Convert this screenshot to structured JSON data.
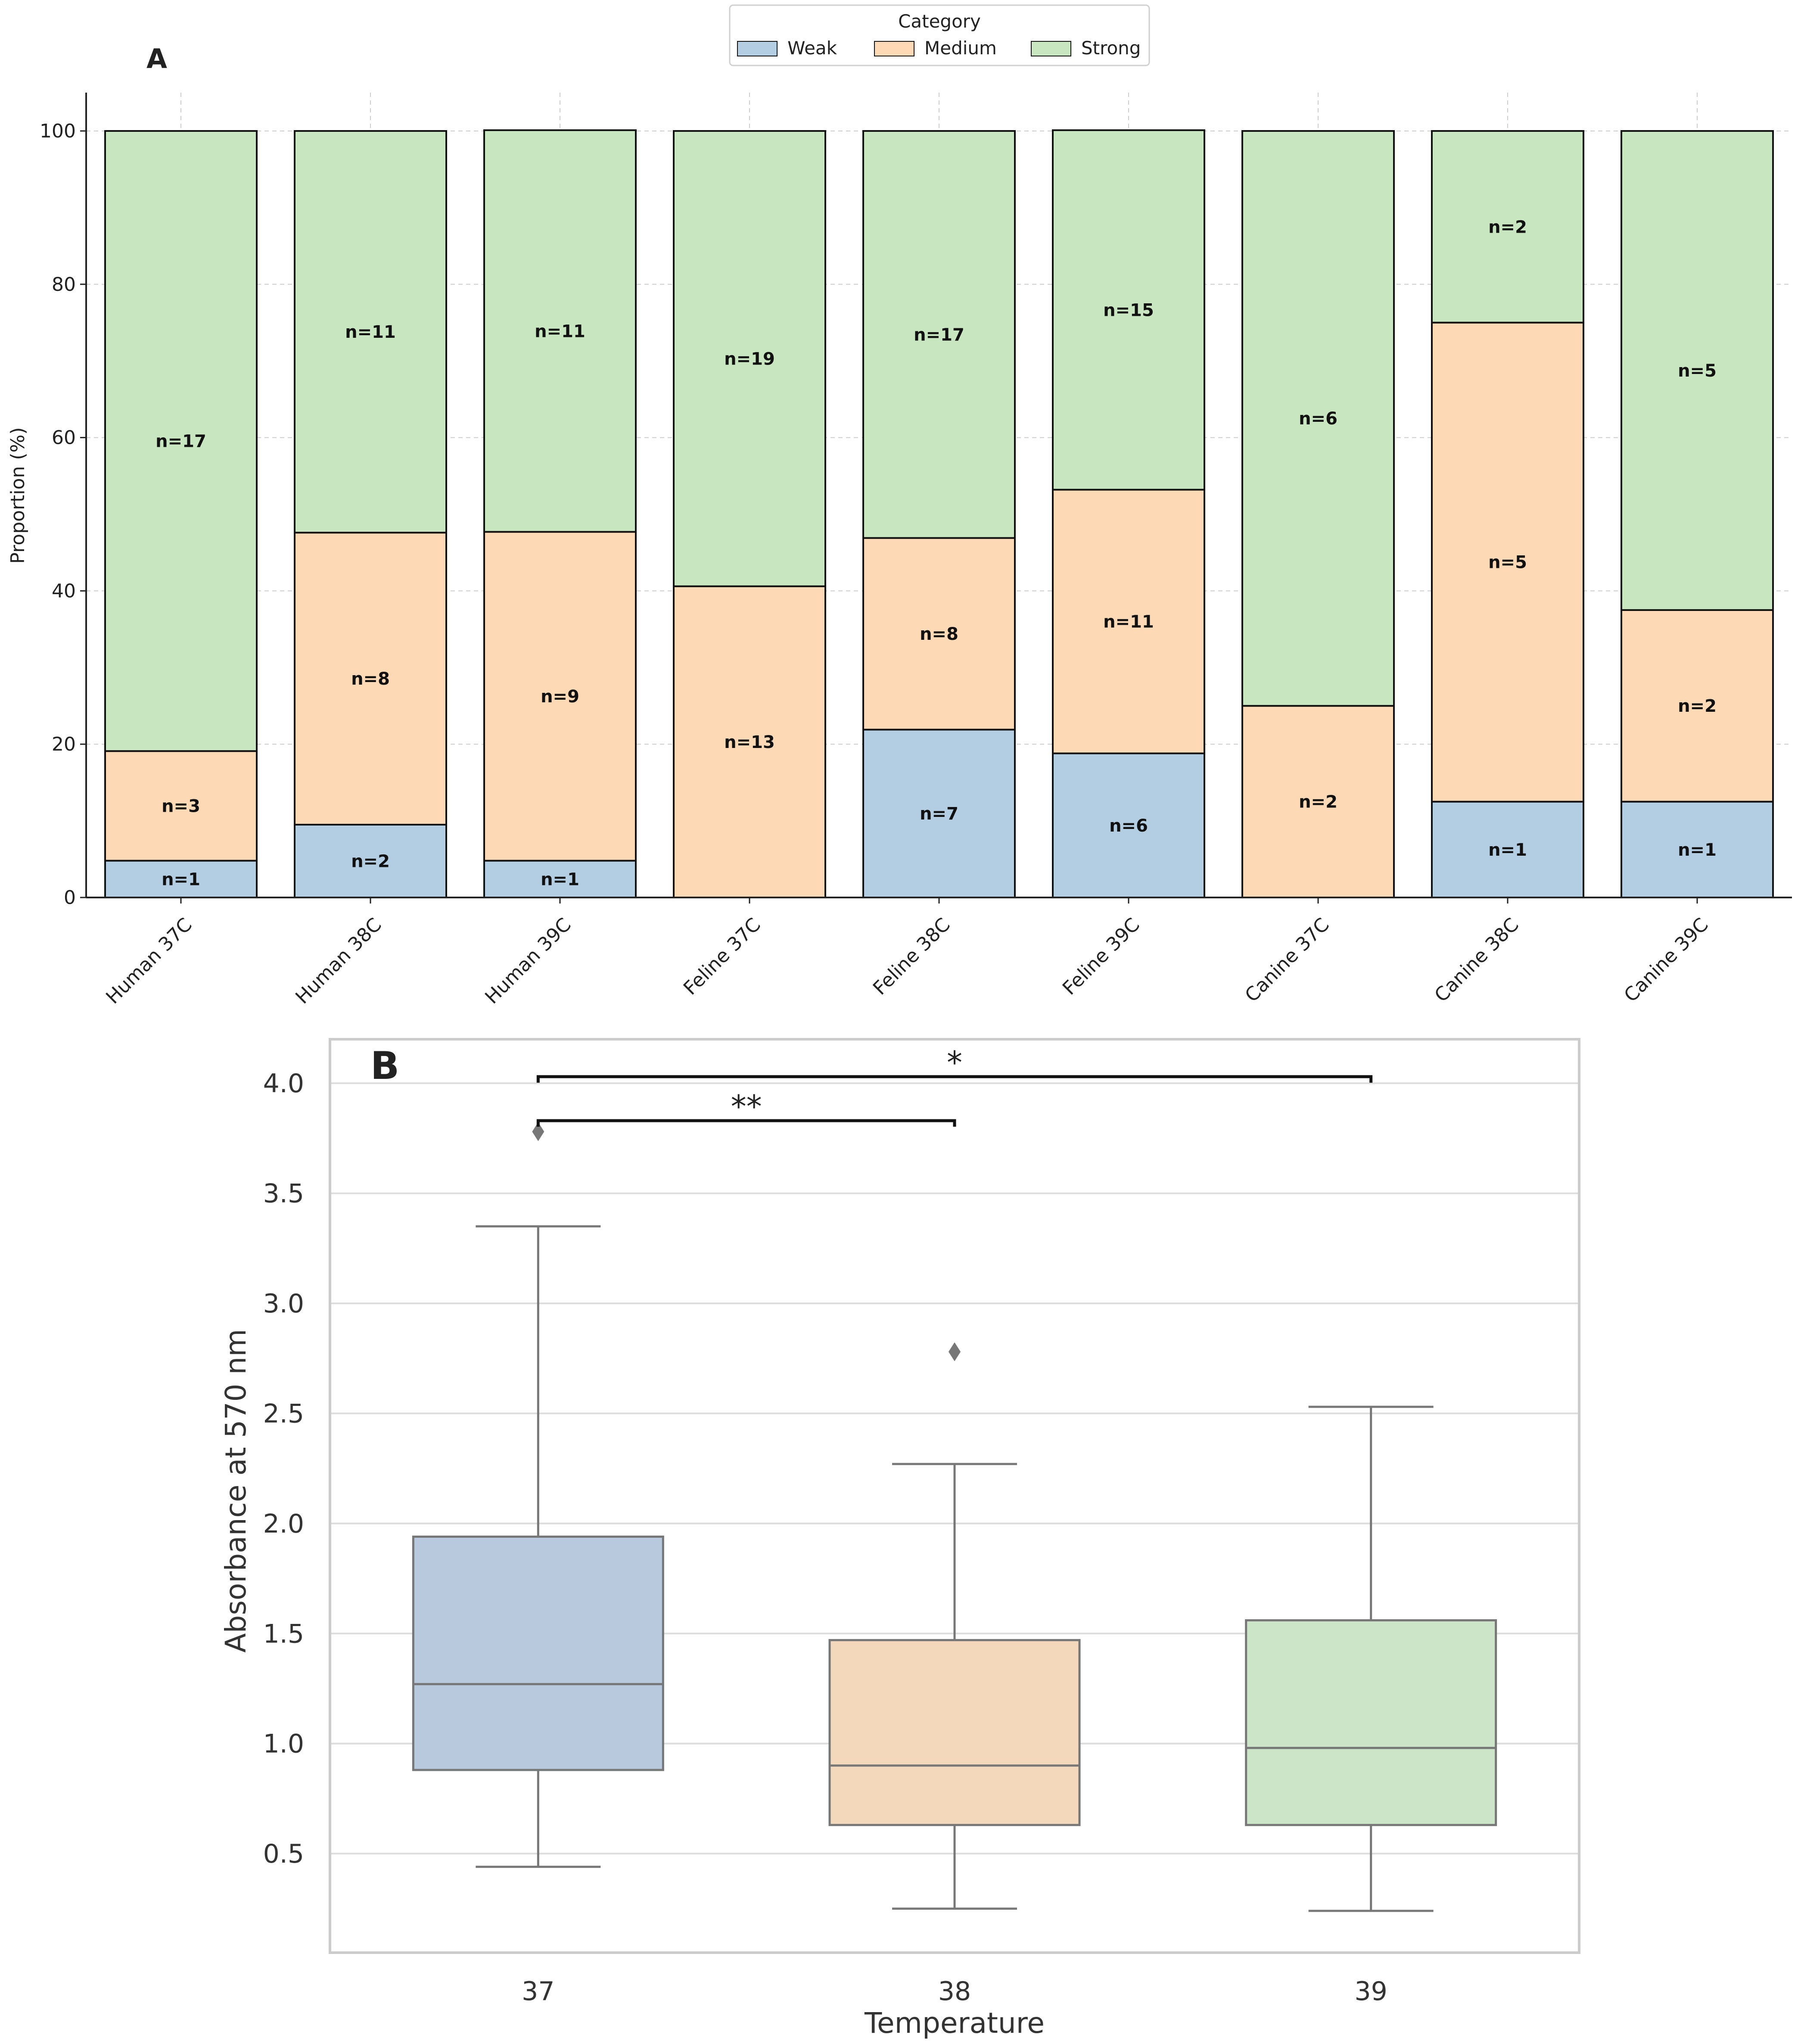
{
  "chart_data": [
    {
      "type": "bar",
      "stacked": true,
      "panel_label": "A",
      "ylabel": "Proportion (%)",
      "ylim": [
        0,
        105
      ],
      "yticks": [
        0,
        20,
        40,
        60,
        80,
        100
      ],
      "grid": true,
      "categories": [
        "Human 37C",
        "Human 38C",
        "Human 39C",
        "Feline 37C",
        "Feline 38C",
        "Feline 39C",
        "Canine 37C",
        "Canine 38C",
        "Canine 39C"
      ],
      "legend": {
        "title": "Category",
        "position": "top-center",
        "entries": [
          "Weak",
          "Medium",
          "Strong"
        ]
      },
      "series": [
        {
          "name": "Weak",
          "color": "#b3cde3",
          "counts": [
            1,
            2,
            1,
            0,
            7,
            6,
            0,
            1,
            1
          ],
          "values": [
            4.8,
            9.5,
            4.8,
            0,
            21.9,
            18.8,
            0,
            12.5,
            12.5
          ],
          "labels": [
            "n=1",
            "n=2",
            "n=1",
            "",
            "n=7",
            "n=6",
            "",
            "n=1",
            "n=1"
          ]
        },
        {
          "name": "Medium",
          "color": "#fdd9b5",
          "counts": [
            3,
            8,
            9,
            13,
            8,
            11,
            2,
            5,
            2
          ],
          "values": [
            14.3,
            38.1,
            42.9,
            40.6,
            25.0,
            34.4,
            25.0,
            62.5,
            25.0
          ],
          "labels": [
            "n=3",
            "n=8",
            "n=9",
            "n=13",
            "n=8",
            "n=11",
            "n=2",
            "n=5",
            "n=2"
          ]
        },
        {
          "name": "Strong",
          "color": "#c8e6c0",
          "counts": [
            17,
            11,
            11,
            19,
            17,
            15,
            6,
            2,
            5
          ],
          "values": [
            80.9,
            52.4,
            52.4,
            59.4,
            53.1,
            46.9,
            75.0,
            25.0,
            62.5
          ],
          "labels": [
            "n=17",
            "n=11",
            "n=11",
            "n=19",
            "n=17",
            "n=15",
            "n=6",
            "n=2",
            "n=5"
          ]
        }
      ]
    },
    {
      "type": "box",
      "panel_label": "B",
      "xlabel": "Temperature",
      "ylabel": "Absorbance at 570 nm",
      "ylim": [
        0.05,
        4.2
      ],
      "yticks": [
        "0.5",
        "1.0",
        "1.5",
        "2.0",
        "2.5",
        "3.0",
        "3.5",
        "4.0"
      ],
      "grid": true,
      "categories": [
        "37",
        "38",
        "39"
      ],
      "boxes": [
        {
          "name": "37",
          "color": "#b8c9de",
          "whisker_low": 0.44,
          "q1": 0.88,
          "median": 1.27,
          "q3": 1.94,
          "whisker_high": 3.35,
          "outliers": [
            3.78
          ]
        },
        {
          "name": "38",
          "color": "#f4d8bc",
          "whisker_low": 0.25,
          "q1": 0.63,
          "median": 0.9,
          "q3": 1.47,
          "whisker_high": 2.27,
          "outliers": [
            2.78
          ]
        },
        {
          "name": "39",
          "color": "#cce5c8",
          "whisker_low": 0.24,
          "q1": 0.63,
          "median": 0.98,
          "q3": 1.56,
          "whisker_high": 2.53,
          "outliers": []
        }
      ],
      "significance": [
        {
          "from": "37",
          "to": "38",
          "label": "**",
          "y": 3.83
        },
        {
          "from": "37",
          "to": "39",
          "label": "*",
          "y": 4.03
        }
      ]
    }
  ]
}
